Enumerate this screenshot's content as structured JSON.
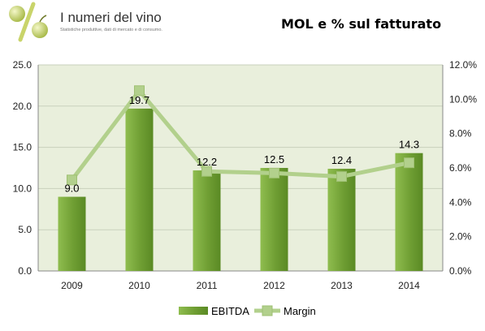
{
  "header": {
    "logo_title": "I numeri del vino",
    "logo_tagline": "Statistiche produttive, dati di mercato e di consumo."
  },
  "chart_data": {
    "type": "bar",
    "title": "MOL e % sul fatturato",
    "categories": [
      "2009",
      "2010",
      "2011",
      "2012",
      "2013",
      "2014"
    ],
    "series": [
      {
        "name": "EBITDA",
        "type": "bar",
        "axis": "left",
        "values": [
          9.0,
          19.7,
          12.2,
          12.5,
          12.4,
          14.3
        ],
        "labels": [
          "9.0",
          "19.7",
          "12.2",
          "12.5",
          "12.4",
          "14.3"
        ],
        "color": "#7aa83a"
      },
      {
        "name": "Margin",
        "type": "line",
        "axis": "right",
        "values": [
          5.3,
          10.5,
          5.8,
          5.7,
          5.5,
          6.3
        ],
        "color": "#b2d08c"
      }
    ],
    "ylim": [
      0,
      25
    ],
    "yticks": [
      "0.0",
      "5.0",
      "10.0",
      "15.0",
      "20.0",
      "25.0"
    ],
    "y2lim": [
      0,
      12
    ],
    "y2ticks": [
      "0.0%",
      "2.0%",
      "4.0%",
      "6.0%",
      "8.0%",
      "10.0%",
      "12.0%"
    ],
    "grid": true,
    "legend": "bottom",
    "plot_background": "#e9efdc"
  }
}
